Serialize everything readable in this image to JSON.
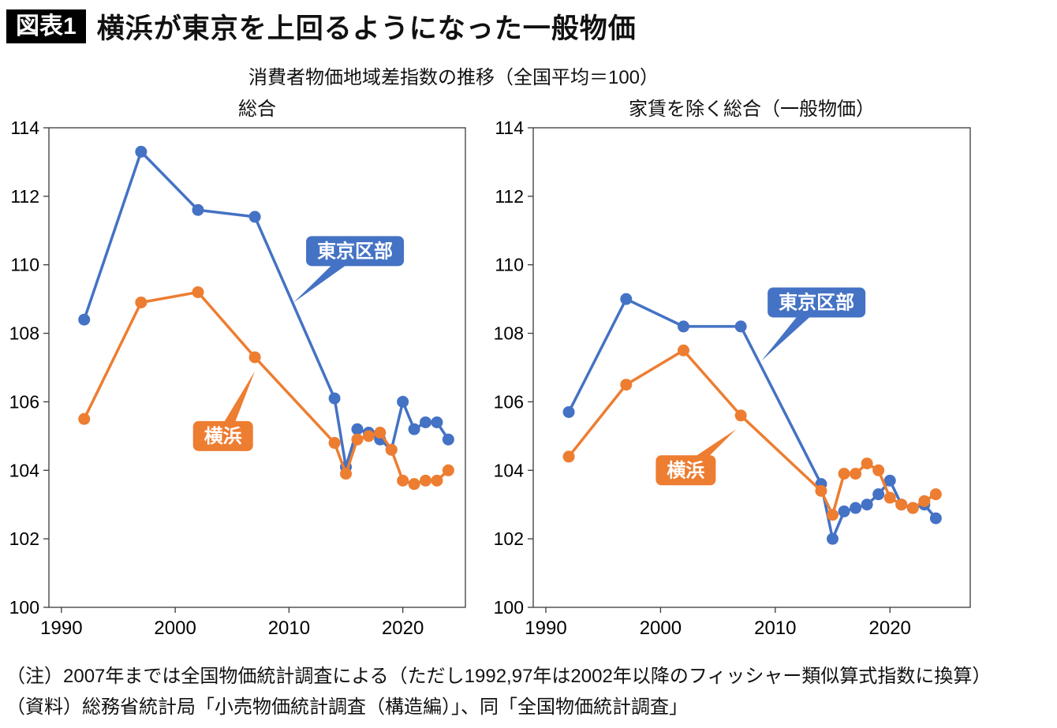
{
  "header": {
    "badge": "図表1",
    "title": "横浜が東京を上回るようになった一般物価",
    "subtitle": "消費者物価地域差指数の推移（全国平均＝100）"
  },
  "colors": {
    "tokyo_blue": "#4472C4",
    "yokohama_orange": "#ED7D31",
    "axis": "#3a3a3a"
  },
  "footer": {
    "note": "（注）2007年までは全国物価統計調査による（ただし1992,97年は2002年以降のフィッシャー類似算式指数に換算）",
    "source": "（資料）総務省統計局「小売物価統計調査（構造編）」、同「全国物価統計調査」"
  },
  "chart_data": [
    {
      "type": "line",
      "title": "総合",
      "x": [
        1992,
        1997,
        2002,
        2007,
        2014,
        2015,
        2016,
        2017,
        2018,
        2019,
        2020,
        2021,
        2022,
        2023,
        2024
      ],
      "xlim": [
        1988.9,
        2025.5
      ],
      "ylim": [
        100,
        114
      ],
      "xticks": [
        1990,
        2000,
        2010,
        2020
      ],
      "yticks": [
        100,
        102,
        104,
        106,
        108,
        110,
        112,
        114
      ],
      "grid": false,
      "series": [
        {
          "name": "東京区部",
          "color": "#4472C4",
          "values": [
            108.4,
            113.3,
            111.6,
            111.4,
            106.1,
            104.1,
            105.2,
            105.1,
            104.9,
            104.6,
            106.0,
            105.2,
            105.4,
            105.4,
            104.9
          ]
        },
        {
          "name": "横浜",
          "color": "#ED7D31",
          "values": [
            105.5,
            108.9,
            109.2,
            107.3,
            104.8,
            103.9,
            104.9,
            105.0,
            105.1,
            104.6,
            103.7,
            103.6,
            103.7,
            103.7,
            104.0
          ]
        }
      ],
      "annotations": [
        {
          "text": "東京区部",
          "color": "#4472C4",
          "box": {
            "x": 2015.8,
            "y": 110.4
          },
          "tip": {
            "x": 2010.4,
            "y": 108.9
          }
        },
        {
          "text": "横浜",
          "color": "#ED7D31",
          "box": {
            "x": 2004.2,
            "y": 105.0
          },
          "tip": {
            "x": 2007.0,
            "y": 106.9
          }
        }
      ]
    },
    {
      "type": "line",
      "title": "家賃を除く総合（一般物価）",
      "x": [
        1992,
        1997,
        2002,
        2007,
        2014,
        2015,
        2016,
        2017,
        2018,
        2019,
        2020,
        2021,
        2022,
        2023,
        2024
      ],
      "xlim": [
        1988.9,
        2027.0
      ],
      "ylim": [
        100,
        114
      ],
      "xticks": [
        1990,
        2000,
        2010,
        2020
      ],
      "yticks": [
        100,
        102,
        104,
        106,
        108,
        110,
        112,
        114
      ],
      "grid": false,
      "series": [
        {
          "name": "東京区部",
          "color": "#4472C4",
          "values": [
            105.7,
            109.0,
            108.2,
            108.2,
            103.6,
            102.0,
            102.8,
            102.9,
            103.0,
            103.3,
            103.7,
            103.0,
            102.9,
            103.0,
            102.6
          ]
        },
        {
          "name": "横浜",
          "color": "#ED7D31",
          "values": [
            104.4,
            106.5,
            107.5,
            105.6,
            103.4,
            102.7,
            103.9,
            103.9,
            104.2,
            104.0,
            103.2,
            103.0,
            102.9,
            103.1,
            103.3
          ]
        }
      ],
      "annotations": [
        {
          "text": "東京区部",
          "color": "#4472C4",
          "box": {
            "x": 2013.6,
            "y": 108.9
          },
          "tip": {
            "x": 2008.8,
            "y": 107.2
          }
        },
        {
          "text": "横浜",
          "color": "#ED7D31",
          "box": {
            "x": 2002.2,
            "y": 104.0
          },
          "tip": {
            "x": 2006.6,
            "y": 105.2
          }
        }
      ]
    }
  ]
}
